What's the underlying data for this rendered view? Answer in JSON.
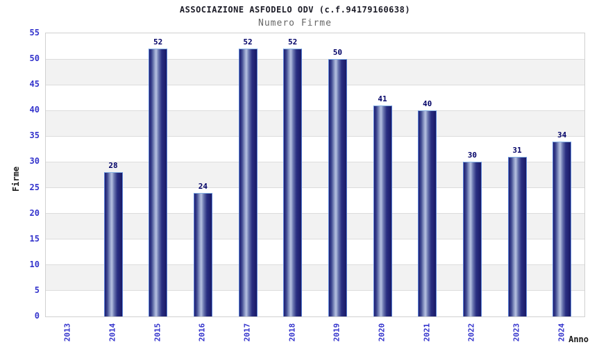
{
  "chart_data": {
    "type": "bar",
    "title": "ASSOCIAZIONE ASFODELO ODV (c.f.94179160638)",
    "subtitle": "Numero Firme",
    "xlabel": "Anno",
    "ylabel": "Firme",
    "categories": [
      "2013",
      "2014",
      "2015",
      "2016",
      "2017",
      "2018",
      "2019",
      "2020",
      "2021",
      "2022",
      "2023",
      "2024"
    ],
    "values": [
      0,
      28,
      52,
      24,
      52,
      52,
      50,
      41,
      40,
      30,
      31,
      34
    ],
    "ylim": [
      0,
      55
    ],
    "ytick_step": 5,
    "yticks": [
      0,
      5,
      10,
      15,
      20,
      25,
      30,
      35,
      40,
      45,
      50,
      55
    ],
    "grid": "horizontal",
    "alternating_bands": true,
    "value_labels_shown": true,
    "legend_position": "none"
  },
  "colors": {
    "title_color": "#1b1b26",
    "subtitle_color": "#666666",
    "axis_tick_label": "#3333cc",
    "value_label": "#000066",
    "axis_title": "#1a1a1a",
    "band_fill": "#f2f2f2",
    "gridline": "#dcdcdc",
    "plot_border": "#d0d0d0",
    "bar_dark": "#1d1d72",
    "bar_mid": "#6a76af",
    "bar_light": "#b7c2e1",
    "bar_border_side": "#5b83d6",
    "bar_border_top": "#86b2e4",
    "background": "#ffffff"
  }
}
